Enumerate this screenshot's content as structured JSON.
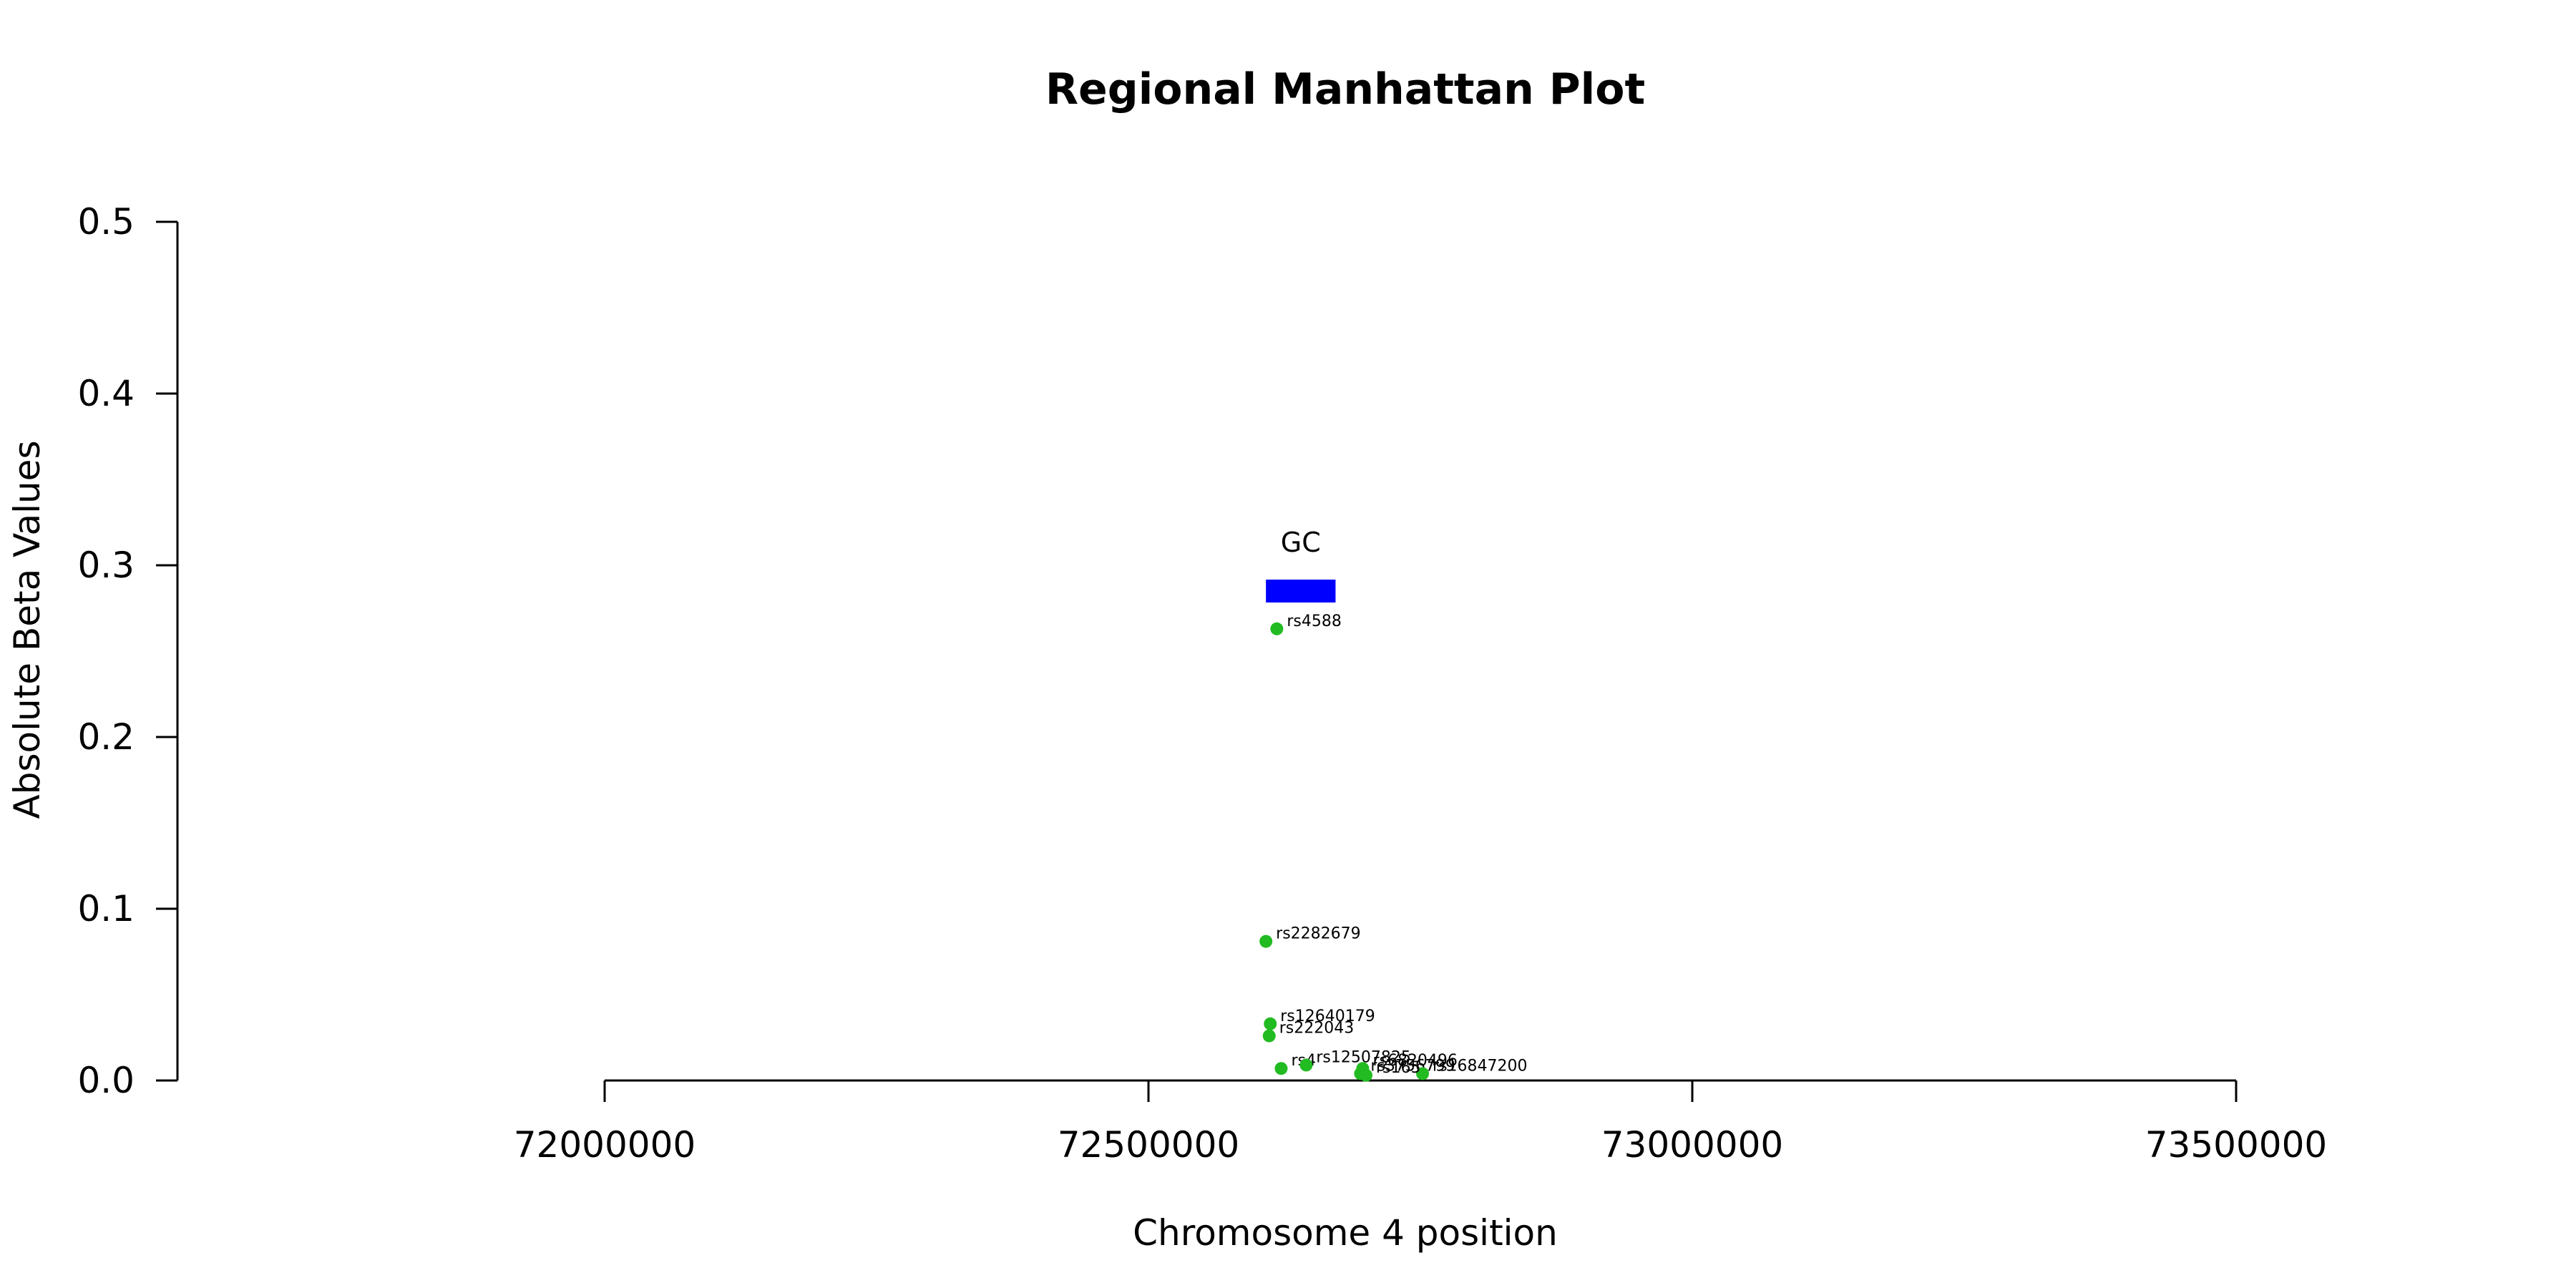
{
  "chart_data": {
    "type": "scatter",
    "title": "Regional Manhattan Plot",
    "xlabel": "Chromosome 4 position",
    "ylabel": "Absolute Beta Values",
    "xlim": [
      71600000,
      73850000
    ],
    "xaxis_range": [
      72000000,
      73500000
    ],
    "xticks": [
      72000000,
      72500000,
      73000000,
      73500000
    ],
    "xtick_labels": [
      "72000000",
      "72500000",
      "73000000",
      "73500000"
    ],
    "ylim": [
      0,
      0.5
    ],
    "yticks": [
      0,
      0.1,
      0.2,
      0.3,
      0.4,
      0.5
    ],
    "ytick_labels": [
      "0.0",
      "0.1",
      "0.2",
      "0.3",
      "0.4",
      "0.5"
    ],
    "grid": false,
    "point_color": "#22bb22",
    "gene_color": "#0000ff",
    "genes": [
      {
        "name": "GC",
        "start": 72608000,
        "end": 72672000,
        "y": 0.285
      }
    ],
    "points": [
      {
        "label": "rs4588",
        "x": 72618000,
        "y": 0.263
      },
      {
        "label": "rs2282679",
        "x": 72608000,
        "y": 0.081
      },
      {
        "label": "rs12640179",
        "x": 72612000,
        "y": 0.033
      },
      {
        "label": "rs222043",
        "x": 72611000,
        "y": 0.026
      },
      {
        "label": "rs4",
        "x": 72622000,
        "y": 0.007
      },
      {
        "label": "rs12507825",
        "x": 72645000,
        "y": 0.009
      },
      {
        "label": "rs3756799",
        "x": 72695000,
        "y": 0.004
      },
      {
        "label": "rs6820496",
        "x": 72697000,
        "y": 0.007
      },
      {
        "label": "rs16847200",
        "x": 72752000,
        "y": 0.004
      },
      {
        "label": "rs165",
        "x": 72700000,
        "y": 0.003
      }
    ]
  }
}
